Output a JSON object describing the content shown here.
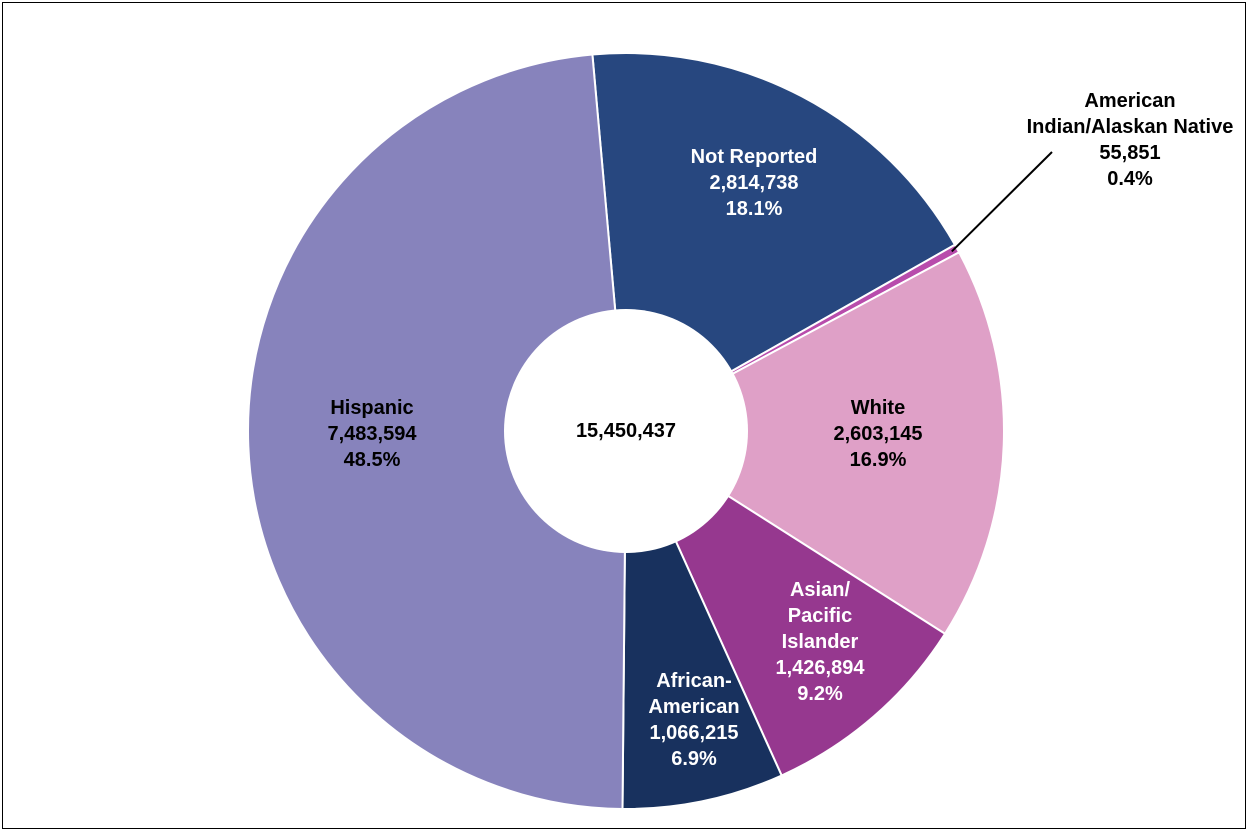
{
  "chart_data": {
    "type": "pie",
    "variant": "donut",
    "center_label": "15,450,437",
    "slices": [
      {
        "name": "Not Reported",
        "name_lines": [
          "Not Reported"
        ],
        "value": 2814738,
        "value_label": "2,814,738",
        "percent_label": "18.1%",
        "color": "#27477F",
        "text_color": "#FFFFFF"
      },
      {
        "name": "American Indian/Alaskan Native",
        "name_lines": [
          "American",
          "Indian/Alaskan Native"
        ],
        "value": 55851,
        "value_label": "55,851",
        "percent_label": "0.4%",
        "color": "#B84CAC",
        "text_color": "#000000"
      },
      {
        "name": "White",
        "name_lines": [
          "White"
        ],
        "value": 2603145,
        "value_label": "2,603,145",
        "percent_label": "16.9%",
        "color": "#DFA0C7",
        "text_color": "#000000"
      },
      {
        "name": "Asian/Pacific Islander",
        "name_lines": [
          "Asian/",
          "Pacific",
          "Islander"
        ],
        "value": 1426894,
        "value_label": "1,426,894",
        "percent_label": "9.2%",
        "color": "#96388F",
        "text_color": "#FFFFFF"
      },
      {
        "name": "African-American",
        "name_lines": [
          "African-",
          "American"
        ],
        "value": 1066215,
        "value_label": "1,066,215",
        "percent_label": "6.9%",
        "color": "#18315E",
        "text_color": "#FFFFFF"
      },
      {
        "name": "Hispanic",
        "name_lines": [
          "Hispanic"
        ],
        "value": 7483594,
        "value_label": "7,483,594",
        "percent_label": "48.5%",
        "color": "#8783BC",
        "text_color": "#000000"
      }
    ]
  }
}
